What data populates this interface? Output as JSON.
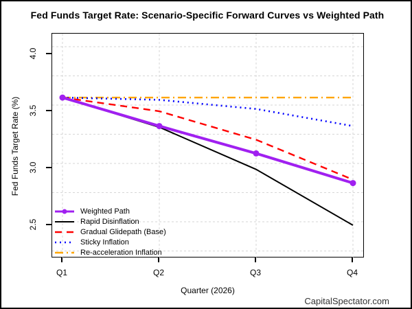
{
  "title": "Fed Funds Target Rate: Scenario-Specific Forward Curves vs Weighted Path",
  "footer": "CapitalSpectator.com",
  "chart_data": {
    "type": "line",
    "title": "Fed Funds Target Rate: Scenario-Specific Forward Curves vs Weighted Path",
    "xlabel": "Quarter (2026)",
    "ylabel": "Fed Funds Target Rate (%)",
    "categories": [
      "Q1",
      "Q2",
      "Q3",
      "Q4"
    ],
    "yticks": [
      4.0,
      3.5,
      3.0,
      2.5
    ],
    "ytick_labels": [
      "4.0",
      "3.5",
      "3.0",
      "2.5"
    ],
    "ylim": [
      2.2,
      4.2
    ],
    "grid": {
      "on": true,
      "style": "dashed",
      "color": "#D6D6D6"
    },
    "legend_position": "bottom-left",
    "series": [
      {
        "name": "Weighted Path",
        "values": [
          3.62,
          3.37,
          3.13,
          2.87
        ],
        "color": "#A020F0",
        "style": "solid",
        "width": 4,
        "marker": "filled-circle"
      },
      {
        "name": "Rapid Disinflation",
        "values": [
          3.62,
          3.36,
          2.99,
          2.5
        ],
        "color": "#000000",
        "style": "solid",
        "width": 2,
        "marker": "none"
      },
      {
        "name": "Gradual Glidepath (Base)",
        "values": [
          3.62,
          3.5,
          3.25,
          2.9
        ],
        "color": "#FF0000",
        "style": "dashed",
        "width": 2.4,
        "marker": "none"
      },
      {
        "name": "Sticky Inflation",
        "values": [
          3.62,
          3.6,
          3.52,
          3.37
        ],
        "color": "#0000FF",
        "style": "dotted",
        "width": 2.6,
        "marker": "none"
      },
      {
        "name": "Re-acceleration Inflation",
        "values": [
          3.62,
          3.62,
          3.62,
          3.62
        ],
        "color": "#FFA500",
        "style": "dashdot",
        "width": 2.4,
        "marker": "none"
      }
    ]
  }
}
